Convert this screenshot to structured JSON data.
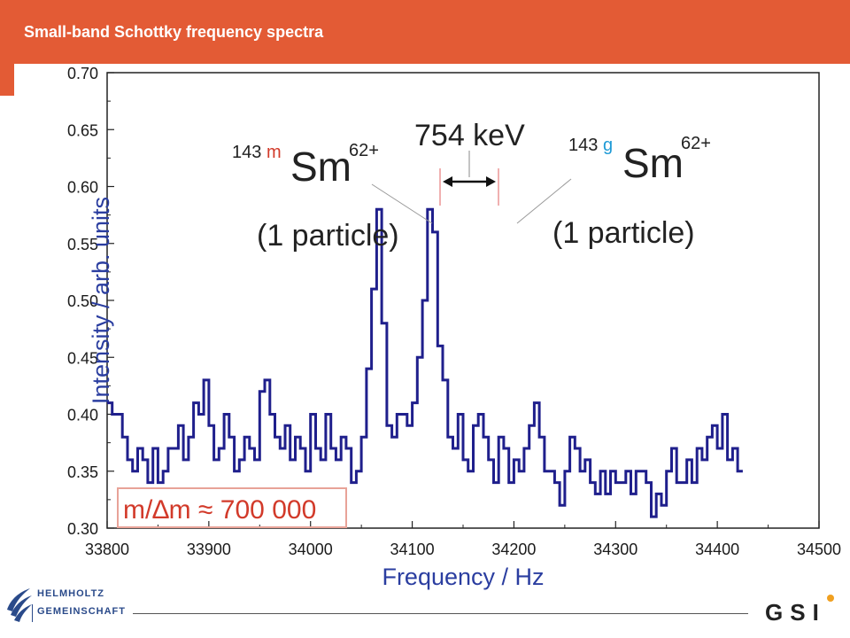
{
  "header": {
    "title": "Small-band Schottky frequency spectra"
  },
  "colors": {
    "header_bg": "#e35b35",
    "trace": "#1f1f8c",
    "axis_title": "#2b3ea0",
    "ratio_box": "#e8a398",
    "ratio_text": "#d23a2a",
    "isotope_m": "#d23a2a",
    "isotope_g": "#1e9ad6"
  },
  "chart_data": {
    "type": "line",
    "xlabel": "Frequency / Hz",
    "ylabel": "Intensity / arb. units",
    "xlim": [
      33800,
      34500
    ],
    "ylim": [
      0.3,
      0.7
    ],
    "x_ticks": [
      "33800",
      "33900",
      "34000",
      "34100",
      "34200",
      "34300",
      "34400",
      "34500"
    ],
    "y_ticks": [
      "0.30",
      "0.35",
      "0.40",
      "0.45",
      "0.50",
      "0.55",
      "0.60",
      "0.65",
      "0.70"
    ],
    "step": 5,
    "series": [
      {
        "values": [
          0.41,
          0.4,
          0.4,
          0.38,
          0.36,
          0.35,
          0.37,
          0.36,
          0.34,
          0.37,
          0.34,
          0.35,
          0.37,
          0.37,
          0.39,
          0.36,
          0.38,
          0.41,
          0.4,
          0.43,
          0.39,
          0.36,
          0.37,
          0.4,
          0.38,
          0.35,
          0.36,
          0.38,
          0.37,
          0.36,
          0.42,
          0.43,
          0.4,
          0.38,
          0.37,
          0.39,
          0.36,
          0.38,
          0.37,
          0.35,
          0.4,
          0.37,
          0.36,
          0.4,
          0.37,
          0.36,
          0.38,
          0.37,
          0.34,
          0.35,
          0.38,
          0.44,
          0.51,
          0.58,
          0.48,
          0.39,
          0.38,
          0.4,
          0.4,
          0.39,
          0.41,
          0.45,
          0.5,
          0.58,
          0.56,
          0.46,
          0.43,
          0.38,
          0.37,
          0.4,
          0.36,
          0.35,
          0.39,
          0.4,
          0.38,
          0.36,
          0.34,
          0.38,
          0.37,
          0.34,
          0.36,
          0.35,
          0.37,
          0.39,
          0.41,
          0.38,
          0.35,
          0.35,
          0.34,
          0.32,
          0.35,
          0.38,
          0.37,
          0.35,
          0.36,
          0.34,
          0.33,
          0.35,
          0.33,
          0.35,
          0.34,
          0.34,
          0.35,
          0.33,
          0.35,
          0.35,
          0.34,
          0.31,
          0.33,
          0.32,
          0.35,
          0.37,
          0.34,
          0.34,
          0.36,
          0.34,
          0.37,
          0.36,
          0.38,
          0.39,
          0.37,
          0.4,
          0.36,
          0.37,
          0.35
        ]
      }
    ],
    "annotations": {
      "energy": "754 keV",
      "left_isotope": {
        "mass": "143",
        "state": "m",
        "symbol": "Sm",
        "charge": "62+",
        "count": "(1 particle)"
      },
      "right_isotope": {
        "mass": "143",
        "state": "g",
        "symbol": "Sm",
        "charge": "62+",
        "count": "(1 particle)"
      },
      "resolution": "m/∆m ≈ 700 000"
    },
    "grid": false,
    "legend": "none"
  },
  "footer": {
    "helmholtz_line1": "HELMHOLTZ",
    "helmholtz_line2": "GEMEINSCHAFT",
    "gsi": "GSI"
  }
}
